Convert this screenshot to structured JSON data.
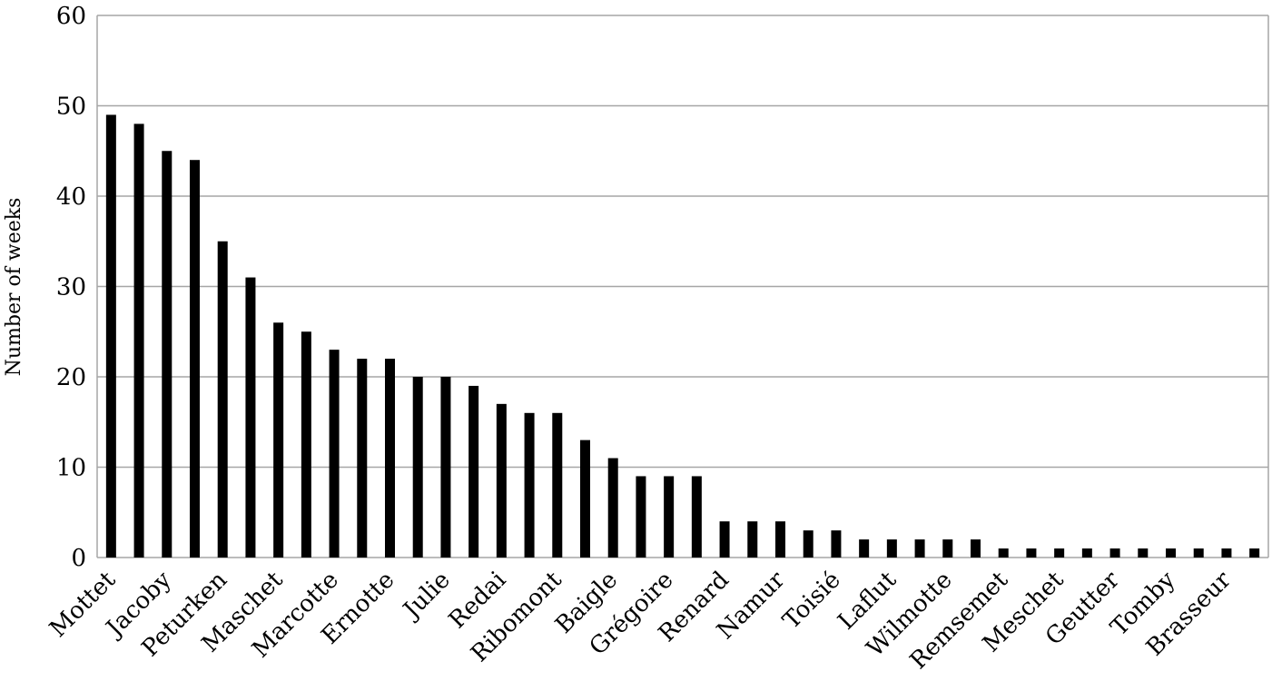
{
  "chart_data": {
    "type": "bar",
    "y_label": "Number of weeks",
    "categories": [
      "Mottet",
      null,
      "Jacoby",
      null,
      "Peturken",
      null,
      "Maschet",
      null,
      "Marcotte",
      null,
      "Ernotte",
      null,
      "Julie",
      null,
      "Redai",
      null,
      "Ribomont",
      null,
      "Baigle",
      null,
      "Grégoire",
      null,
      "Renard",
      null,
      "Namur",
      null,
      "Toisié",
      null,
      "Laflut",
      null,
      "Wilmotte",
      null,
      "Remsemet",
      null,
      "Meschet",
      null,
      "Geutter",
      null,
      "Tomby",
      null,
      "Brasseur",
      null
    ],
    "values": [
      49,
      48,
      45,
      44,
      35,
      31,
      26,
      25,
      23,
      22,
      22,
      20,
      20,
      19,
      17,
      16,
      16,
      13,
      11,
      9,
      9,
      9,
      4,
      4,
      4,
      3,
      3,
      2,
      2,
      2,
      2,
      2,
      1,
      1,
      1,
      1,
      1,
      1,
      1,
      1,
      1,
      1
    ],
    "color": "#000000",
    "ylim": [
      0,
      60
    ],
    "yticks": [
      0,
      10,
      20,
      30,
      40,
      50,
      60
    ],
    "grid": true
  }
}
